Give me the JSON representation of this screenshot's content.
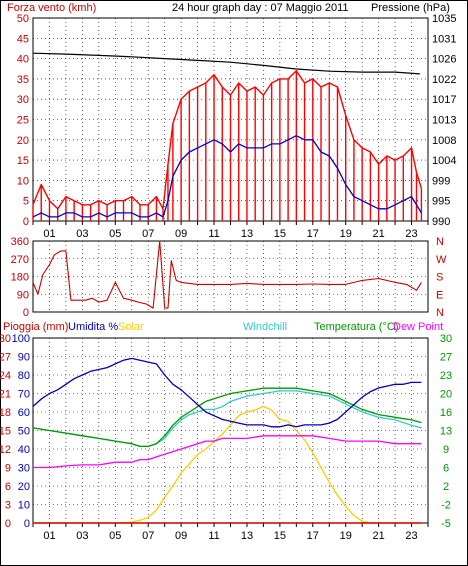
{
  "header": {
    "wind_title": "Forza vento (kmh)",
    "graph_title": "24 hour graph day : 07 Maggio 2011",
    "pressure_title": "Pressione (hPa)"
  },
  "panel3_legend": {
    "rain": "Pioggia (mm)",
    "humidity": "Umidita %",
    "solar": "Solar",
    "windchill": "Windchill",
    "temperature": "Temperatura (°C)",
    "dewpoint": "Dew Point"
  },
  "direction_labels": [
    "N",
    "W",
    "S",
    "E",
    "N"
  ],
  "colors": {
    "wind_gust": "#ff0000",
    "wind_avg": "#0000cc",
    "pressure": "#000000",
    "direction": "#cc0000",
    "rain": "#cc0000",
    "humidity": "#0000bb",
    "solar": "#ffcc00",
    "windchill": "#33cccc",
    "temperature": "#009900",
    "dewpoint": "#ff00ff",
    "text_red": "#cc0000",
    "text_green": "#009900",
    "text_blue": "#0000bb",
    "grid": "#000000"
  },
  "chart_data": [
    {
      "type": "line",
      "title": "24 hour graph day : 07 Maggio 2011",
      "x_tick_labels": [
        "01",
        "03",
        "05",
        "07",
        "09",
        "11",
        "13",
        "15",
        "17",
        "19",
        "21",
        "23"
      ],
      "x_unit": "hour",
      "y_left_label": "Forza vento (kmh)",
      "y_left_ticks": [
        "0",
        "5",
        "10",
        "15",
        "20",
        "25",
        "30",
        "35",
        "40",
        "45",
        "50"
      ],
      "ylim_left": [
        0,
        50
      ],
      "y_right_label": "Pressione (hPa)",
      "y_right_ticks": [
        "990",
        "995",
        "999",
        "1004",
        "1008",
        "1013",
        "1017",
        "1022",
        "1026",
        "1031",
        "1035"
      ],
      "ylim_right": [
        990,
        1035
      ],
      "grid": true,
      "series": [
        {
          "name": "gust",
          "x": [
            0.0,
            0.5,
            1.0,
            1.5,
            2.0,
            2.5,
            3.0,
            3.5,
            4.0,
            4.5,
            5.0,
            5.5,
            6.0,
            6.5,
            7.0,
            7.5,
            7.9,
            8.2,
            8.5,
            9.0,
            9.5,
            10.0,
            10.5,
            11.0,
            11.5,
            12.0,
            12.5,
            13.0,
            13.5,
            14.0,
            14.5,
            15.0,
            15.5,
            16.0,
            16.5,
            17.0,
            17.5,
            18.0,
            18.5,
            19.0,
            19.5,
            20.0,
            20.5,
            21.0,
            21.5,
            22.0,
            22.5,
            23.0,
            23.3,
            23.6
          ],
          "y": [
            4,
            9,
            5,
            3,
            6,
            5,
            4,
            4,
            5,
            4,
            5,
            5,
            6,
            4,
            4,
            6,
            3,
            14,
            24,
            30,
            32,
            33,
            34,
            36,
            33,
            31,
            34,
            32,
            33,
            31,
            34,
            35,
            35,
            37,
            34,
            35,
            33,
            34,
            33,
            26,
            20,
            18,
            17,
            14,
            16,
            15,
            16,
            18,
            12,
            8
          ]
        },
        {
          "name": "average",
          "x": [
            0.0,
            0.5,
            1.0,
            1.5,
            2.0,
            2.5,
            3.0,
            3.5,
            4.0,
            4.5,
            5.0,
            5.5,
            6.0,
            6.5,
            7.0,
            7.5,
            7.9,
            8.2,
            8.5,
            9.0,
            9.5,
            10.0,
            10.5,
            11.0,
            11.5,
            12.0,
            12.5,
            13.0,
            13.5,
            14.0,
            14.5,
            15.0,
            15.5,
            16.0,
            16.5,
            17.0,
            17.5,
            18.0,
            18.5,
            19.0,
            19.5,
            20.0,
            20.5,
            21.0,
            21.5,
            22.0,
            22.5,
            23.0,
            23.3,
            23.6
          ],
          "y": [
            1,
            2,
            1,
            1,
            2,
            2,
            1,
            1,
            2,
            1,
            2,
            2,
            2,
            1,
            1,
            2,
            1,
            5,
            11,
            15,
            17,
            18,
            19,
            20,
            19,
            17,
            19,
            18,
            18,
            18,
            19,
            19,
            20,
            21,
            20,
            20,
            17,
            16,
            13,
            9,
            6,
            5,
            4,
            3,
            3,
            4,
            5,
            6,
            4,
            2
          ]
        },
        {
          "name": "pressure",
          "axis": "right",
          "x": [
            0,
            2,
            4,
            6,
            8,
            10,
            12,
            14,
            16,
            18,
            20,
            22,
            23.5
          ],
          "y": [
            1027.2,
            1027.0,
            1026.7,
            1026.4,
            1026.0,
            1025.6,
            1025.2,
            1024.5,
            1023.7,
            1023.2,
            1023.0,
            1023.0,
            1022.6
          ]
        }
      ]
    },
    {
      "type": "scatter",
      "x_unit": "hour",
      "y_ticks": [
        "0",
        "90",
        "180",
        "270",
        "360"
      ],
      "ylim": [
        0,
        360
      ],
      "right_labels": [
        "N",
        "W",
        "S",
        "E",
        "N"
      ],
      "grid": true,
      "series": [
        {
          "name": "direction",
          "x": [
            0.0,
            0.3,
            0.6,
            1.0,
            1.3,
            1.7,
            2.0,
            2.3,
            2.8,
            3.2,
            3.6,
            4.0,
            4.5,
            5.0,
            5.5,
            6.0,
            6.4,
            6.9,
            7.3,
            7.7,
            8.0,
            8.2,
            8.4,
            8.7,
            9.0,
            10.0,
            11.0,
            12.0,
            13.0,
            14.0,
            15.0,
            16.0,
            17.0,
            18.0,
            19.0,
            20.0,
            21.0,
            22.0,
            22.7,
            23.3,
            23.6
          ],
          "y": [
            150,
            90,
            190,
            240,
            290,
            310,
            310,
            60,
            60,
            60,
            70,
            50,
            60,
            150,
            70,
            60,
            50,
            40,
            20,
            360,
            20,
            20,
            260,
            160,
            150,
            140,
            140,
            140,
            145,
            140,
            140,
            140,
            142,
            140,
            140,
            160,
            170,
            150,
            140,
            110,
            150
          ]
        }
      ]
    },
    {
      "type": "line",
      "x_unit": "hour",
      "x_tick_labels": [
        "01",
        "03",
        "05",
        "07",
        "09",
        "11",
        "13",
        "15",
        "17",
        "19",
        "21",
        "23"
      ],
      "y_left_ticks_rain": [
        "0",
        "3",
        "6",
        "9",
        "12",
        "15",
        "18",
        "21",
        "24",
        "27",
        "30"
      ],
      "y_left_ticks_humidity": [
        "0",
        "10",
        "20",
        "30",
        "40",
        "50",
        "60",
        "70",
        "80",
        "90",
        "100"
      ],
      "ylim_rain": [
        0,
        30
      ],
      "ylim_humidity": [
        0,
        100
      ],
      "y_right_ticks": [
        "-5",
        "-2",
        "2",
        "6",
        "9",
        "13",
        "16",
        "20",
        "23",
        "27",
        "30"
      ],
      "ylim_right": [
        -5,
        30
      ],
      "grid": true,
      "series": [
        {
          "name": "humidity",
          "axis": "humidity",
          "x": [
            0.0,
            0.5,
            1.0,
            1.5,
            2.0,
            2.5,
            3.0,
            3.5,
            4.0,
            4.5,
            5.0,
            5.5,
            6.0,
            6.5,
            7.0,
            7.5,
            8.0,
            8.5,
            9.0,
            9.5,
            10.0,
            10.5,
            11.0,
            11.5,
            12.0,
            12.5,
            13.0,
            13.5,
            14.0,
            14.5,
            15.0,
            15.5,
            16.0,
            16.5,
            17.0,
            17.5,
            18.0,
            18.5,
            19.0,
            19.5,
            20.0,
            20.5,
            21.0,
            21.5,
            22.0,
            22.5,
            23.0,
            23.3,
            23.6
          ],
          "y": [
            63,
            67,
            70,
            72,
            75,
            78,
            80,
            82,
            83,
            84,
            86,
            88,
            89,
            88,
            87,
            86,
            80,
            75,
            72,
            68,
            64,
            60,
            58,
            56,
            55,
            54,
            53,
            53,
            53,
            52,
            52,
            53,
            52,
            53,
            53,
            53,
            54,
            56,
            60,
            64,
            68,
            71,
            73,
            74,
            75,
            75,
            76,
            76,
            76
          ]
        },
        {
          "name": "windchill",
          "axis": "temp",
          "x": [
            0,
            1,
            2,
            3,
            4,
            5,
            6,
            6.5,
            7,
            7.5,
            8,
            8.5,
            9,
            9.5,
            10,
            10.5,
            11,
            11.5,
            12,
            13,
            14,
            15,
            16,
            17,
            18,
            19,
            20,
            21,
            22,
            23,
            23.6
          ],
          "y": [
            13,
            12.5,
            12,
            11.5,
            11,
            10.5,
            10,
            9.5,
            9.5,
            10,
            11,
            13,
            14.5,
            15.5,
            16,
            16.5,
            16.5,
            17,
            18,
            19,
            19.5,
            20,
            20,
            19.5,
            19,
            17.5,
            16,
            15,
            14.5,
            13.5,
            13
          ]
        },
        {
          "name": "temperature",
          "axis": "temp",
          "x": [
            0,
            1,
            2,
            3,
            4,
            5,
            6,
            6.5,
            7,
            7.5,
            8,
            8.5,
            9,
            9.5,
            10,
            10.5,
            11,
            11.5,
            12,
            13,
            14,
            15,
            16,
            17,
            18,
            19,
            20,
            21,
            22,
            23,
            23.6
          ],
          "y": [
            13,
            12.5,
            12,
            11.5,
            11,
            10.5,
            10,
            9.5,
            9.5,
            10,
            11.5,
            13.5,
            15,
            16,
            17,
            18,
            18.5,
            19,
            19.5,
            20,
            20.5,
            20.5,
            20.5,
            20,
            19.5,
            18,
            16.5,
            15.5,
            15,
            14.5,
            14
          ]
        },
        {
          "name": "dewpoint",
          "axis": "temp",
          "x": [
            0,
            1,
            2,
            3,
            4,
            5,
            6,
            6.5,
            7,
            7.5,
            8,
            8.5,
            9,
            9.5,
            10,
            10.5,
            11,
            11.5,
            12,
            13,
            14,
            15,
            16,
            17,
            18,
            19,
            20,
            21,
            22,
            23,
            23.6
          ],
          "y": [
            5.5,
            5.5,
            5.8,
            6,
            6,
            6.5,
            6.5,
            7,
            7,
            7.5,
            8,
            8.5,
            9,
            9.5,
            10,
            10.5,
            10.5,
            11,
            11,
            11,
            11.5,
            11.5,
            11.5,
            11.5,
            11,
            10.5,
            10.5,
            10.5,
            10,
            10,
            10
          ]
        },
        {
          "name": "solar",
          "axis": "humidity",
          "x": [
            0,
            5,
            6,
            6.5,
            7,
            7.5,
            8,
            8.5,
            9,
            9.5,
            10,
            10.5,
            11,
            11.5,
            12,
            12.5,
            13,
            13.5,
            14,
            14.5,
            15,
            15.5,
            16,
            16.5,
            17,
            17.5,
            18,
            18.5,
            19,
            19.5,
            20,
            20.5,
            21,
            23.6
          ],
          "y": [
            0,
            0,
            0.5,
            1.5,
            3,
            7,
            14,
            20,
            27,
            32,
            37,
            40,
            44,
            48,
            53,
            58,
            60,
            61,
            63,
            61,
            56,
            55,
            50,
            45,
            38,
            30,
            22,
            15,
            9,
            4,
            1,
            0,
            0,
            0
          ]
        },
        {
          "name": "rain",
          "axis": "rain",
          "x": [
            0,
            23.6
          ],
          "y": [
            0,
            0
          ]
        }
      ]
    }
  ]
}
